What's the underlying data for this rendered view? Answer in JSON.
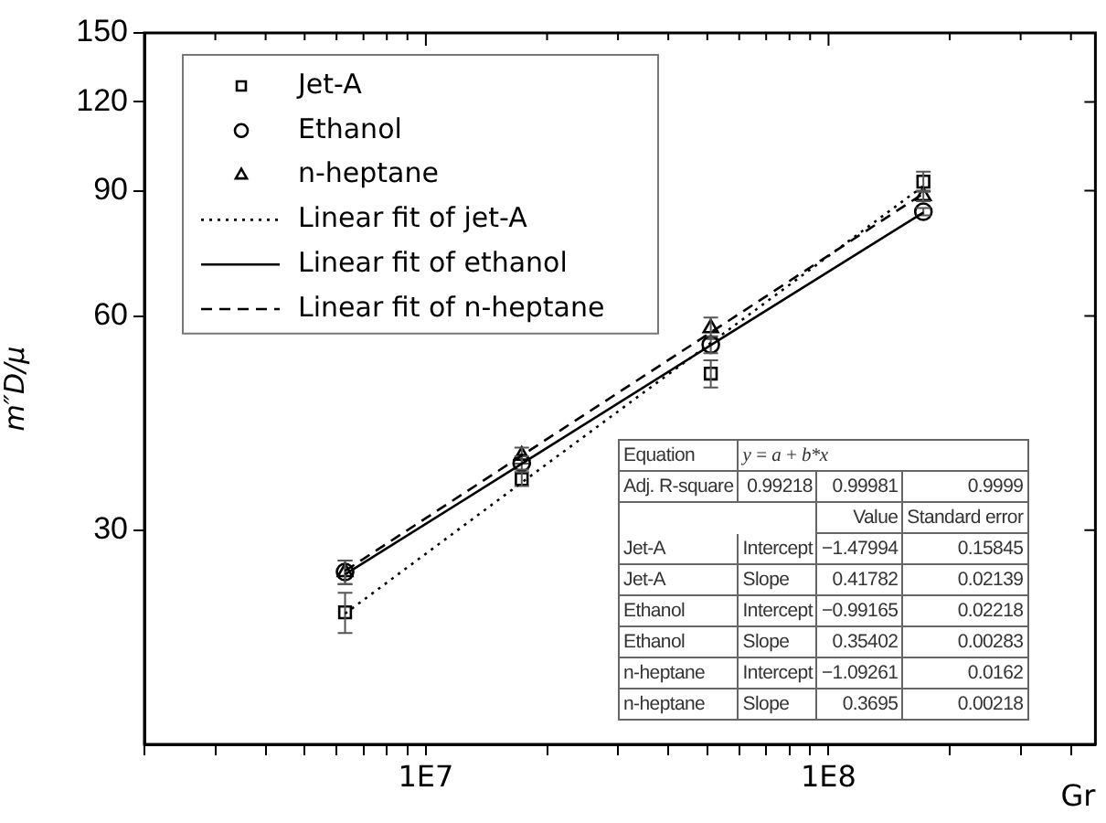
{
  "chart_data": {
    "type": "scatter",
    "xlabel": "Gr",
    "ylabel": "m″D/μ",
    "log": "xy",
    "xlim": [
      2000000,
      460000000
    ],
    "ylim": [
      15,
      150
    ],
    "xticks": [
      {
        "value": 2000000,
        "label": null
      },
      {
        "value": 3000000,
        "label": null
      },
      {
        "value": 4000000,
        "label": null
      },
      {
        "value": 5000000,
        "label": null
      },
      {
        "value": 6000000,
        "label": null
      },
      {
        "value": 7000000,
        "label": null
      },
      {
        "value": 8000000,
        "label": null
      },
      {
        "value": 9000000,
        "label": null
      },
      {
        "value": 10000000,
        "label": "1E7"
      },
      {
        "value": 20000000,
        "label": null
      },
      {
        "value": 30000000,
        "label": null
      },
      {
        "value": 40000000,
        "label": null
      },
      {
        "value": 50000000,
        "label": null
      },
      {
        "value": 60000000,
        "label": null
      },
      {
        "value": 70000000,
        "label": null
      },
      {
        "value": 80000000,
        "label": null
      },
      {
        "value": 90000000,
        "label": null
      },
      {
        "value": 100000000,
        "label": "1E8"
      },
      {
        "value": 200000000,
        "label": null
      },
      {
        "value": 300000000,
        "label": null
      },
      {
        "value": 400000000,
        "label": null
      }
    ],
    "yticks": [
      30,
      60,
      90,
      120,
      150
    ],
    "grid": false,
    "legend": "top left",
    "x": [
      6300000,
      17300000,
      51000000,
      172000000
    ],
    "series": [
      {
        "name": "Jet-A",
        "type": "scatter",
        "marker": "square",
        "color": "#000000",
        "values": [
          23.0,
          35.4,
          49.8,
          92.7
        ],
        "errors": [
          1.5,
          0.8,
          2.2,
          3
        ]
      },
      {
        "name": "Ethanol",
        "type": "scatter",
        "marker": "circle",
        "color": "#000000",
        "values": [
          26.2,
          37.3,
          54.7,
          84.1
        ],
        "errors": [
          1,
          0.8,
          1.5,
          1
        ]
      },
      {
        "name": "n-heptane",
        "type": "scatter",
        "marker": "triangle",
        "color": "#000000",
        "values": [
          26.2,
          38.2,
          57.7,
          88.5
        ],
        "errors": [
          1,
          1,
          2,
          1.5
        ]
      },
      {
        "name": "Linear fit of jet-A",
        "type": "line",
        "marker": "none",
        "line_style": "dotted",
        "color": "#000000",
        "values": [
          22.9,
          35.0,
          55.0,
          91.4
        ]
      },
      {
        "name": "Linear fit of ethanol",
        "type": "line",
        "line_style": "solid",
        "color": "#000000",
        "values": [
          26.0,
          37.2,
          54.6,
          83.9
        ]
      },
      {
        "name": "Linear fit of n-heptane",
        "type": "line",
        "line_style": "dashed",
        "color": "#000000",
        "values": [
          26.3,
          38.2,
          56.9,
          89.2
        ]
      }
    ],
    "annotations": [
      "Equation\ty = a + b*x",
      "Adj. R-square\t0.99218\t0.99981\t0.9999",
      "\t\tValue\tStandard error",
      "Jet-A\tIntercept\t−1.47994\t0.15845",
      "Jet-A\tSlope\t0.41782\t0.02139",
      "Ethanol\tIntercept\t−0.99165\t0.02218",
      "Ethanol\tSlope\t0.35402\t0.00283",
      "n-heptane\tIntercept\t−1.09261\t0.0162",
      "n-heptane\tSlope\t0.3695\t0.00218"
    ]
  }
}
